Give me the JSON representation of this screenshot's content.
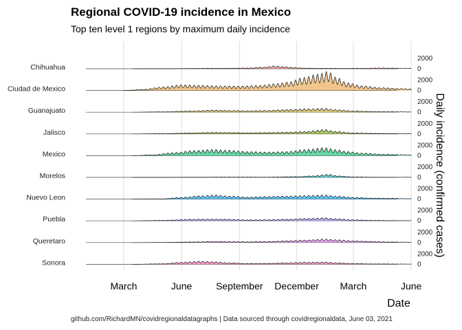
{
  "title": "Regional COVID-19 incidence in Mexico",
  "subtitle": "Top ten level 1 regions by maximum daily incidence",
  "caption": "github.com/RichardMN/covidregionaldatagraphs | Data sourced through covidregionaldata, June 03, 2021",
  "chart_data": {
    "type": "area",
    "title": "Regional COVID-19 incidence in Mexico",
    "subtitle": "Top ten level 1 regions by maximum daily incidence",
    "xlabel": "Date",
    "ylabel": "Daily incidence (confirmed cases)",
    "x_ticks": [
      "March",
      "June",
      "September",
      "December",
      "March",
      "June"
    ],
    "x_tick_dates": [
      "2020-03-01",
      "2020-06-01",
      "2020-09-01",
      "2020-12-01",
      "2021-03-01",
      "2021-06-01"
    ],
    "x_range": [
      "2020-01-01",
      "2021-06-03"
    ],
    "y_ticks": [
      0,
      2000
    ],
    "y_range_per_panel": [
      0,
      2000
    ],
    "grid": true,
    "legend": "none",
    "series": [
      {
        "name": "Chihuahua",
        "color": "#f8766d",
        "points": [
          [
            "2020-03-15",
            0
          ],
          [
            "2020-05-01",
            20
          ],
          [
            "2020-06-15",
            60
          ],
          [
            "2020-08-01",
            100
          ],
          [
            "2020-09-15",
            150
          ],
          [
            "2020-10-10",
            300
          ],
          [
            "2020-10-25",
            550
          ],
          [
            "2020-11-10",
            400
          ],
          [
            "2020-11-25",
            250
          ],
          [
            "2020-12-15",
            120
          ],
          [
            "2021-01-15",
            90
          ],
          [
            "2021-02-15",
            70
          ],
          [
            "2021-03-15",
            90
          ],
          [
            "2021-04-15",
            160
          ],
          [
            "2021-05-01",
            130
          ],
          [
            "2021-06-01",
            80
          ]
        ]
      },
      {
        "name": "Ciudad de Mexico",
        "color": "#e6a040",
        "points": [
          [
            "2020-03-01",
            0
          ],
          [
            "2020-04-01",
            200
          ],
          [
            "2020-05-01",
            700
          ],
          [
            "2020-06-01",
            1100
          ],
          [
            "2020-07-01",
            1000
          ],
          [
            "2020-08-01",
            900
          ],
          [
            "2020-09-01",
            850
          ],
          [
            "2020-10-01",
            1000
          ],
          [
            "2020-11-01",
            1350
          ],
          [
            "2020-11-20",
            1700
          ],
          [
            "2020-12-10",
            2500
          ],
          [
            "2021-01-05",
            3200
          ],
          [
            "2021-01-20",
            3700
          ],
          [
            "2021-02-01",
            2600
          ],
          [
            "2021-02-20",
            1500
          ],
          [
            "2021-03-15",
            900
          ],
          [
            "2021-04-15",
            550
          ],
          [
            "2021-05-15",
            380
          ],
          [
            "2021-06-01",
            300
          ]
        ]
      },
      {
        "name": "Guanajuato",
        "color": "#c4aa2c",
        "points": [
          [
            "2020-03-15",
            0
          ],
          [
            "2020-05-01",
            80
          ],
          [
            "2020-06-15",
            250
          ],
          [
            "2020-07-20",
            400
          ],
          [
            "2020-08-15",
            350
          ],
          [
            "2020-09-15",
            280
          ],
          [
            "2020-10-15",
            350
          ],
          [
            "2020-11-15",
            500
          ],
          [
            "2020-12-15",
            650
          ],
          [
            "2021-01-15",
            750
          ],
          [
            "2021-02-01",
            500
          ],
          [
            "2021-03-01",
            250
          ],
          [
            "2021-04-01",
            150
          ],
          [
            "2021-05-01",
            100
          ],
          [
            "2021-06-01",
            60
          ]
        ]
      },
      {
        "name": "Jalisco",
        "color": "#7cae00",
        "points": [
          [
            "2020-03-15",
            0
          ],
          [
            "2020-05-01",
            60
          ],
          [
            "2020-06-15",
            200
          ],
          [
            "2020-07-20",
            300
          ],
          [
            "2020-08-15",
            280
          ],
          [
            "2020-09-15",
            220
          ],
          [
            "2020-10-15",
            260
          ],
          [
            "2020-11-15",
            330
          ],
          [
            "2020-12-15",
            500
          ],
          [
            "2021-01-15",
            850
          ],
          [
            "2021-02-01",
            500
          ],
          [
            "2021-03-01",
            200
          ],
          [
            "2021-04-01",
            120
          ],
          [
            "2021-05-01",
            80
          ],
          [
            "2021-06-01",
            60
          ]
        ]
      },
      {
        "name": "Mexico",
        "color": "#00be67",
        "points": [
          [
            "2020-03-15",
            0
          ],
          [
            "2020-04-15",
            150
          ],
          [
            "2020-05-20",
            600
          ],
          [
            "2020-06-20",
            1000
          ],
          [
            "2020-07-20",
            1200
          ],
          [
            "2020-08-15",
            1050
          ],
          [
            "2020-09-15",
            800
          ],
          [
            "2020-10-15",
            700
          ],
          [
            "2020-11-15",
            800
          ],
          [
            "2020-12-15",
            1200
          ],
          [
            "2021-01-15",
            1550
          ],
          [
            "2021-02-01",
            1200
          ],
          [
            "2021-02-20",
            800
          ],
          [
            "2021-03-15",
            500
          ],
          [
            "2021-04-15",
            300
          ],
          [
            "2021-05-15",
            200
          ],
          [
            "2021-06-01",
            150
          ]
        ]
      },
      {
        "name": "Morelos",
        "color": "#00bfc4",
        "points": [
          [
            "2020-03-15",
            0
          ],
          [
            "2020-05-01",
            10
          ],
          [
            "2020-06-15",
            40
          ],
          [
            "2020-08-15",
            60
          ],
          [
            "2020-10-15",
            50
          ],
          [
            "2020-12-01",
            150
          ],
          [
            "2020-12-25",
            300
          ],
          [
            "2021-01-20",
            600
          ],
          [
            "2021-02-05",
            300
          ],
          [
            "2021-03-01",
            100
          ],
          [
            "2021-04-01",
            40
          ],
          [
            "2021-06-01",
            20
          ]
        ]
      },
      {
        "name": "Nuevo Leon",
        "color": "#00a9ff",
        "points": [
          [
            "2020-03-15",
            0
          ],
          [
            "2020-05-01",
            50
          ],
          [
            "2020-06-01",
            350
          ],
          [
            "2020-07-01",
            650
          ],
          [
            "2020-07-25",
            800
          ],
          [
            "2020-08-15",
            600
          ],
          [
            "2020-09-15",
            400
          ],
          [
            "2020-10-15",
            500
          ],
          [
            "2020-11-15",
            600
          ],
          [
            "2020-12-15",
            700
          ],
          [
            "2021-01-15",
            800
          ],
          [
            "2021-02-01",
            600
          ],
          [
            "2021-03-01",
            350
          ],
          [
            "2021-04-01",
            200
          ],
          [
            "2021-05-01",
            150
          ],
          [
            "2021-06-01",
            100
          ]
        ]
      },
      {
        "name": "Puebla",
        "color": "#8f7cff",
        "points": [
          [
            "2020-03-15",
            0
          ],
          [
            "2020-05-01",
            100
          ],
          [
            "2020-06-15",
            300
          ],
          [
            "2020-07-20",
            350
          ],
          [
            "2020-08-15",
            300
          ],
          [
            "2020-09-15",
            200
          ],
          [
            "2020-10-15",
            220
          ],
          [
            "2020-11-15",
            300
          ],
          [
            "2020-12-15",
            450
          ],
          [
            "2021-01-15",
            600
          ],
          [
            "2021-02-01",
            400
          ],
          [
            "2021-03-01",
            200
          ],
          [
            "2021-04-01",
            100
          ],
          [
            "2021-05-01",
            60
          ],
          [
            "2021-06-01",
            40
          ]
        ]
      },
      {
        "name": "Queretaro",
        "color": "#e36ef6",
        "points": [
          [
            "2020-03-15",
            0
          ],
          [
            "2020-05-01",
            30
          ],
          [
            "2020-06-15",
            120
          ],
          [
            "2020-07-20",
            200
          ],
          [
            "2020-08-15",
            180
          ],
          [
            "2020-09-15",
            150
          ],
          [
            "2020-10-15",
            200
          ],
          [
            "2020-11-15",
            350
          ],
          [
            "2020-12-15",
            500
          ],
          [
            "2021-01-15",
            700
          ],
          [
            "2021-02-01",
            550
          ],
          [
            "2021-03-01",
            350
          ],
          [
            "2021-04-01",
            200
          ],
          [
            "2021-05-01",
            120
          ],
          [
            "2021-06-01",
            80
          ]
        ]
      },
      {
        "name": "Sonora",
        "color": "#ff64b0",
        "points": [
          [
            "2020-03-15",
            0
          ],
          [
            "2020-05-01",
            100
          ],
          [
            "2020-06-01",
            400
          ],
          [
            "2020-07-01",
            600
          ],
          [
            "2020-07-20",
            500
          ],
          [
            "2020-08-15",
            300
          ],
          [
            "2020-09-15",
            150
          ],
          [
            "2020-10-15",
            180
          ],
          [
            "2020-11-15",
            300
          ],
          [
            "2020-12-15",
            400
          ],
          [
            "2021-01-15",
            450
          ],
          [
            "2021-02-01",
            300
          ],
          [
            "2021-03-01",
            150
          ],
          [
            "2021-04-01",
            80
          ],
          [
            "2021-06-01",
            50
          ]
        ]
      }
    ]
  }
}
